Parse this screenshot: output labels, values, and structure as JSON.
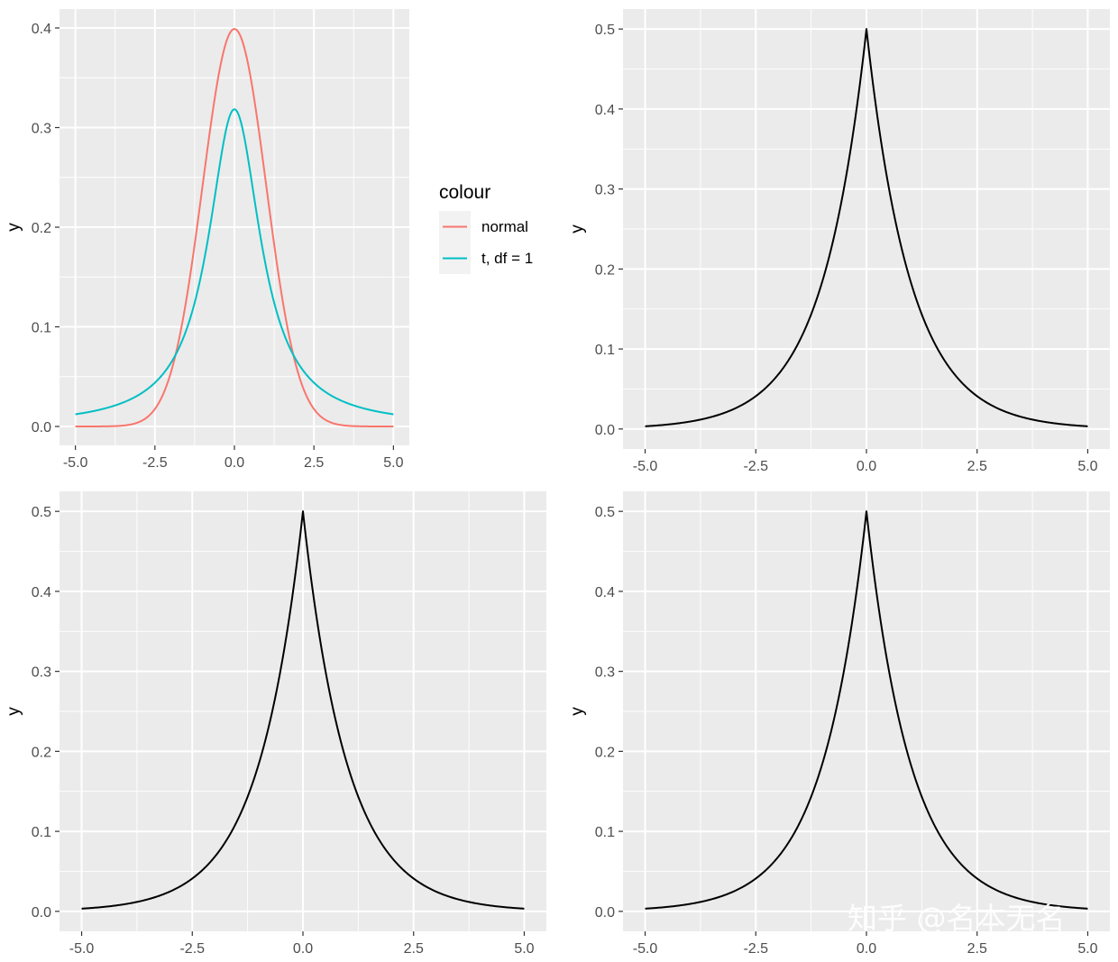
{
  "chart_data": [
    {
      "type": "line",
      "title": "",
      "xlabel": "",
      "ylabel": "y",
      "xlim": [
        -5.5,
        5.5
      ],
      "ylim": [
        -0.019,
        0.419
      ],
      "x_breaks": [
        -5,
        -2.5,
        0,
        2.5,
        5
      ],
      "x_tick_labels": [
        "-5.0",
        "-2.5",
        "0.0",
        "2.5",
        "5.0"
      ],
      "y_breaks": [
        0,
        0.1,
        0.2,
        0.3,
        0.4
      ],
      "y_tick_labels": [
        "0.0",
        "0.1",
        "0.2",
        "0.3",
        "0.4"
      ],
      "grid": true,
      "legend": {
        "title": "colour",
        "position": "right"
      },
      "series": [
        {
          "name": "normal",
          "color": "#F8766D",
          "distribution": "normal",
          "x_range": [
            -5,
            5
          ]
        },
        {
          "name": "t, df = 1",
          "color": "#00BFC4",
          "distribution": "t_df1",
          "x_range": [
            -5,
            5
          ]
        }
      ]
    },
    {
      "type": "line",
      "title": "",
      "xlabel": "",
      "ylabel": "y",
      "xlim": [
        -5.5,
        5.5
      ],
      "ylim": [
        -0.025,
        0.525
      ],
      "x_breaks": [
        -5,
        -2.5,
        0,
        2.5,
        5
      ],
      "x_tick_labels": [
        "-5.0",
        "-2.5",
        "0.0",
        "2.5",
        "5.0"
      ],
      "y_breaks": [
        0,
        0.1,
        0.2,
        0.3,
        0.4,
        0.5
      ],
      "y_tick_labels": [
        "0.0",
        "0.1",
        "0.2",
        "0.3",
        "0.4",
        "0.5"
      ],
      "grid": true,
      "series": [
        {
          "color": "#000000",
          "distribution": "laplace",
          "x_range": [
            -5,
            5
          ]
        }
      ]
    },
    {
      "type": "line",
      "title": "",
      "xlabel": "",
      "ylabel": "y",
      "xlim": [
        -5.5,
        5.5
      ],
      "ylim": [
        -0.025,
        0.525
      ],
      "x_breaks": [
        -5,
        -2.5,
        0,
        2.5,
        5
      ],
      "x_tick_labels": [
        "-5.0",
        "-2.5",
        "0.0",
        "2.5",
        "5.0"
      ],
      "y_breaks": [
        0,
        0.1,
        0.2,
        0.3,
        0.4,
        0.5
      ],
      "y_tick_labels": [
        "0.0",
        "0.1",
        "0.2",
        "0.3",
        "0.4",
        "0.5"
      ],
      "grid": true,
      "series": [
        {
          "color": "#000000",
          "distribution": "laplace",
          "x_range": [
            -5,
            5
          ]
        }
      ]
    },
    {
      "type": "line",
      "title": "",
      "xlabel": "",
      "ylabel": "y",
      "xlim": [
        -5.5,
        5.5
      ],
      "ylim": [
        -0.025,
        0.525
      ],
      "x_breaks": [
        -5,
        -2.5,
        0,
        2.5,
        5
      ],
      "x_tick_labels": [
        "-5.0",
        "-2.5",
        "0.0",
        "2.5",
        "5.0"
      ],
      "y_breaks": [
        0,
        0.1,
        0.2,
        0.3,
        0.4,
        0.5
      ],
      "y_tick_labels": [
        "0.0",
        "0.1",
        "0.2",
        "0.3",
        "0.4",
        "0.5"
      ],
      "grid": true,
      "series": [
        {
          "color": "#000000",
          "distribution": "laplace",
          "x_range": [
            -5,
            5
          ]
        }
      ]
    }
  ],
  "watermark": {
    "text": "知乎 @名本无名"
  },
  "theme": {
    "panel_background": "#EBEBEB",
    "grid_color": "#FFFFFF",
    "legend_key_background": "#F2F2F2"
  }
}
